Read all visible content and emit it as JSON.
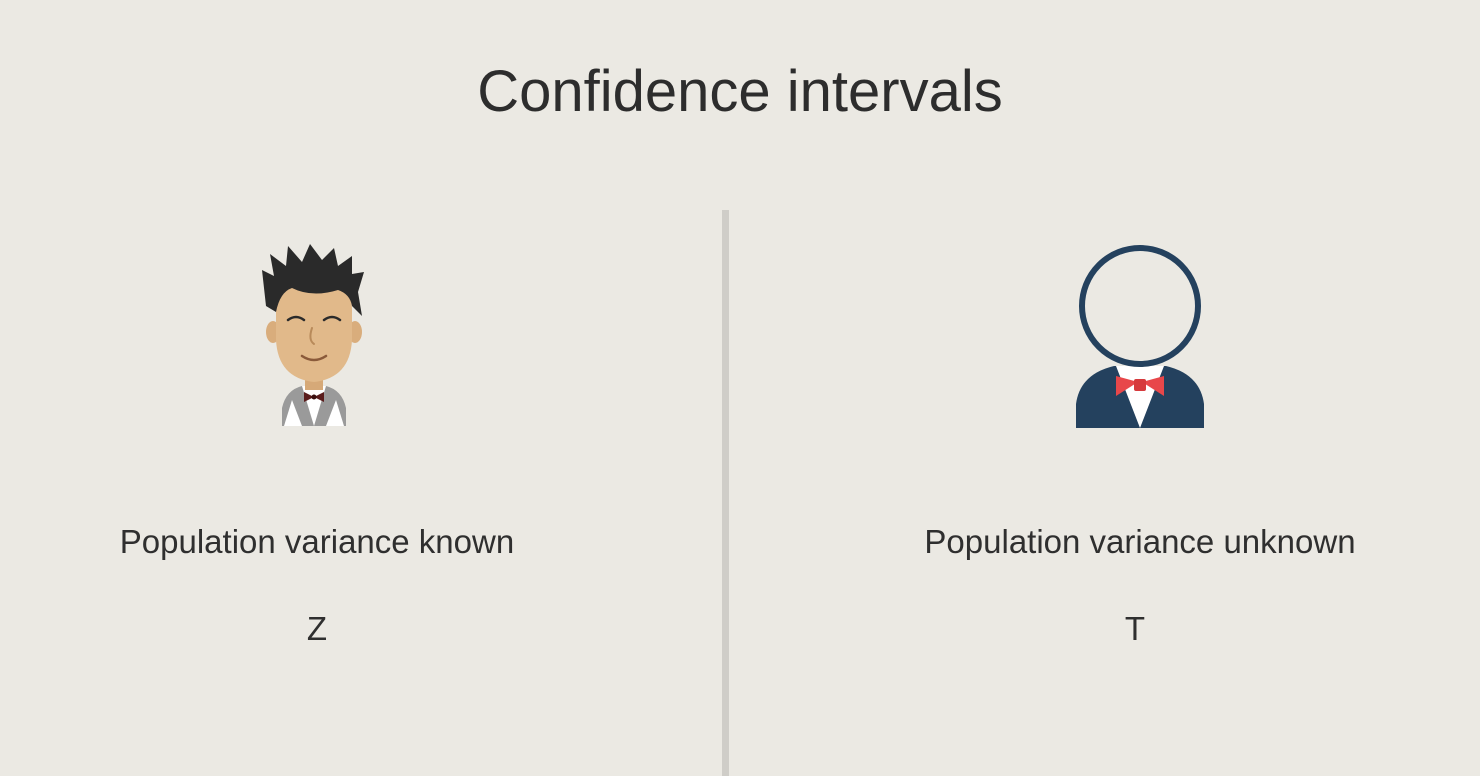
{
  "title": "Confidence intervals",
  "left_panel": {
    "label": "Population variance known",
    "symbol": "Z",
    "character_icon": "smiling-man-bowtie-icon"
  },
  "right_panel": {
    "label": "Population variance unknown",
    "symbol": "T",
    "character_icon": "faceless-man-bowtie-icon"
  },
  "colors": {
    "background": "#ebe9e3",
    "bowtie_red": "#e8474a",
    "suit_navy": "#24415e",
    "skin": "#e1b98a",
    "hair": "#2a2a2a"
  }
}
